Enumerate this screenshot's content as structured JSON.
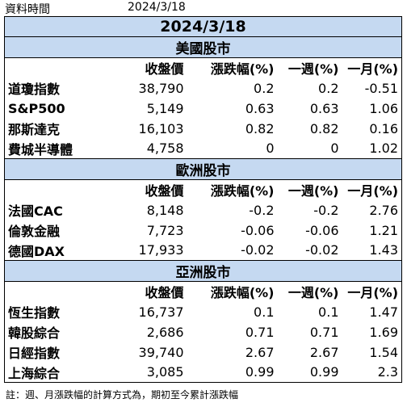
{
  "header": {
    "label": "資料時間",
    "date": "2024/3/18"
  },
  "title": "2024/3/18",
  "columns": [
    "收盤價",
    "漲跌幅(%)",
    "一週(%)",
    "一月(%)"
  ],
  "sections": [
    {
      "title": "美國股市",
      "rows": [
        {
          "name": "道瓊指數",
          "close": "38,790",
          "change": "0.2",
          "week": "0.2",
          "month": "-0.51"
        },
        {
          "name": "S&P500",
          "close": "5,149",
          "change": "0.63",
          "week": "0.63",
          "month": "1.06"
        },
        {
          "name": "那斯達克",
          "close": "16,103",
          "change": "0.82",
          "week": "0.82",
          "month": "0.16"
        },
        {
          "name": "費城半導體",
          "close": "4,758",
          "change": "0",
          "week": "0",
          "month": "1.02"
        }
      ]
    },
    {
      "title": "歐洲股市",
      "rows": [
        {
          "name": "法國CAC",
          "close": "8,148",
          "change": "-0.2",
          "week": "-0.2",
          "month": "2.76"
        },
        {
          "name": "倫敦金融",
          "close": "7,723",
          "change": "-0.06",
          "week": "-0.06",
          "month": "1.21"
        },
        {
          "name": "德國DAX",
          "close": "17,933",
          "change": "-0.02",
          "week": "-0.02",
          "month": "1.43"
        }
      ]
    },
    {
      "title": "亞洲股市",
      "rows": [
        {
          "name": "恆生指數",
          "close": "16,737",
          "change": "0.1",
          "week": "0.1",
          "month": "1.47"
        },
        {
          "name": "韓股綜合",
          "close": "2,686",
          "change": "0.71",
          "week": "0.71",
          "month": "1.69"
        },
        {
          "name": "日經指數",
          "close": "39,740",
          "change": "2.67",
          "week": "2.67",
          "month": "1.54"
        },
        {
          "name": "上海綜合",
          "close": "3,085",
          "change": "0.99",
          "week": "0.99",
          "month": "2.3"
        }
      ]
    }
  ],
  "footnote": "註：週、月漲跌幅的計算方式為，期初至今累計漲跌幅",
  "colors": {
    "banner": "#c5d9f1",
    "border": "#000000"
  }
}
